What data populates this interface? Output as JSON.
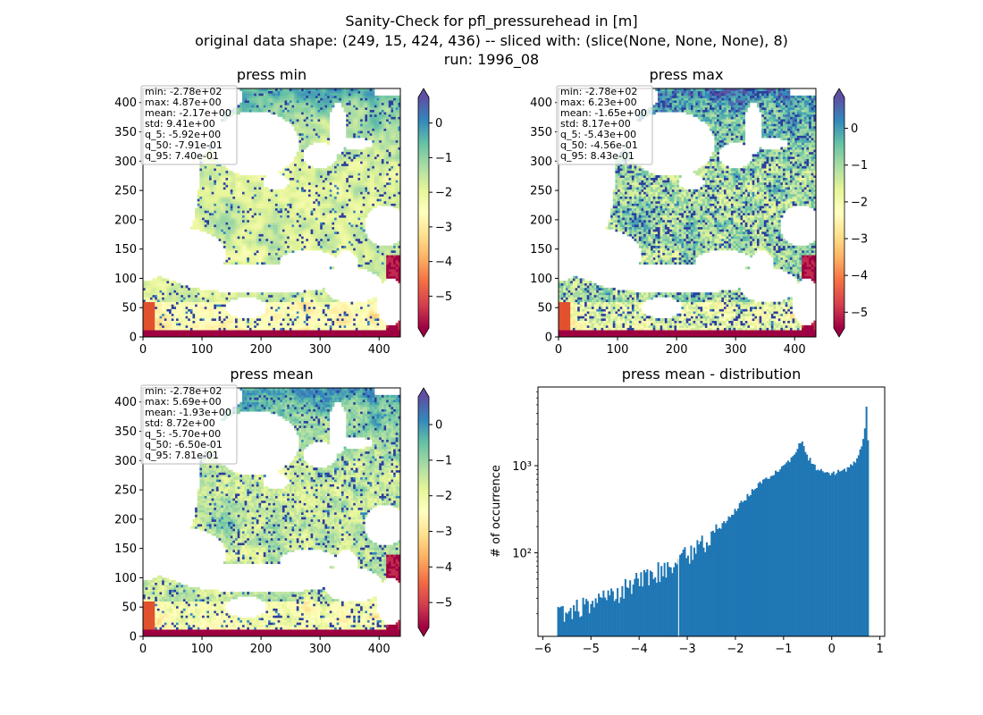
{
  "figure": {
    "title_lines": [
      "Sanity-Check for pfl_pressurehead in [m]",
      "original data shape: (249, 15, 424, 436) -- sliced with: (slice(None, None, None), 8)",
      "run: 1996_08"
    ]
  },
  "colormap": {
    "name": "Spectral",
    "stops": [
      "#9e0142",
      "#d53e4f",
      "#f46d43",
      "#fdae61",
      "#fee08b",
      "#ffffbf",
      "#e6f598",
      "#abdda4",
      "#66c2a5",
      "#3288bd",
      "#5e4fa2"
    ],
    "river_color": "#2b3f9e"
  },
  "chart_data": [
    {
      "type": "heatmap",
      "title": "press min",
      "xlim": [
        0,
        436
      ],
      "ylim": [
        0,
        424
      ],
      "xticks": [
        "0",
        "100",
        "200",
        "300",
        "400"
      ],
      "yticks": [
        "0",
        "50",
        "100",
        "150",
        "200",
        "250",
        "300",
        "350",
        "400"
      ],
      "colorbar": {
        "vmin": -5.92,
        "vmax": 0.74,
        "ticks": [
          "0",
          "−1",
          "−2",
          "−3",
          "−4",
          "−5"
        ],
        "extend": "both"
      },
      "stats": [
        "min: -2.78e+02",
        "max: 4.87e+00",
        "mean: -2.17e+00",
        "std: 9.41e+00",
        "q_5: -5.92e+00",
        "q_50: -7.91e-01",
        "q_95: 7.40e-01"
      ]
    },
    {
      "type": "heatmap",
      "title": "press max",
      "xlim": [
        0,
        436
      ],
      "ylim": [
        0,
        424
      ],
      "xticks": [
        "0",
        "100",
        "200",
        "300",
        "400"
      ],
      "yticks": [
        "0",
        "50",
        "100",
        "150",
        "200",
        "250",
        "300",
        "350",
        "400"
      ],
      "colorbar": {
        "vmin": -5.43,
        "vmax": 0.84,
        "ticks": [
          "0",
          "−1",
          "−2",
          "−3",
          "−4",
          "−5"
        ],
        "extend": "both"
      },
      "stats": [
        "min: -2.78e+02",
        "max: 6.23e+00",
        "mean: -1.65e+00",
        "std: 8.17e+00",
        "q_5: -5.43e+00",
        "q_50: -4.56e-01",
        "q_95: 8.43e-01"
      ]
    },
    {
      "type": "heatmap",
      "title": "press mean",
      "xlim": [
        0,
        436
      ],
      "ylim": [
        0,
        424
      ],
      "xticks": [
        "0",
        "100",
        "200",
        "300",
        "400"
      ],
      "yticks": [
        "0",
        "50",
        "100",
        "150",
        "200",
        "250",
        "300",
        "350",
        "400"
      ],
      "colorbar": {
        "vmin": -5.7,
        "vmax": 0.78,
        "ticks": [
          "0",
          "−1",
          "−2",
          "−3",
          "−4",
          "−5"
        ],
        "extend": "both"
      },
      "stats": [
        "min: -2.78e+02",
        "max: 5.69e+00",
        "mean: -1.93e+00",
        "std: 8.72e+00",
        "q_5: -5.70e+00",
        "q_50: -6.50e-01",
        "q_95: 7.81e-01"
      ]
    },
    {
      "type": "bar",
      "title": "press mean - distribution",
      "xlabel": "",
      "ylabel": "# of occurrence",
      "yscale": "log",
      "xlim": [
        -6.1,
        1.1
      ],
      "ylim": [
        11,
        8000
      ],
      "xticks": [
        "−6",
        "−5",
        "−4",
        "−3",
        "−2",
        "−1",
        "0",
        "1"
      ],
      "yticks": [
        "10²",
        "10³"
      ],
      "bar_color": "#1f77b4",
      "bin_width": 0.0325,
      "anchors": [
        [
          -5.7,
          28
        ],
        [
          -5.6,
          20
        ],
        [
          -5.4,
          22
        ],
        [
          -5.0,
          26
        ],
        [
          -4.6,
          33
        ],
        [
          -4.2,
          42
        ],
        [
          -3.8,
          55
        ],
        [
          -3.4,
          72
        ],
        [
          -3.0,
          95
        ],
        [
          -2.6,
          140
        ],
        [
          -2.2,
          230
        ],
        [
          -1.8,
          420
        ],
        [
          -1.5,
          620
        ],
        [
          -1.2,
          820
        ],
        [
          -0.9,
          1100
        ],
        [
          -0.75,
          1400
        ],
        [
          -0.62,
          2100
        ],
        [
          -0.52,
          1300
        ],
        [
          -0.4,
          1050
        ],
        [
          -0.3,
          900
        ],
        [
          -0.1,
          820
        ],
        [
          0.1,
          830
        ],
        [
          0.3,
          880
        ],
        [
          0.5,
          1100
        ],
        [
          0.62,
          1600
        ],
        [
          0.68,
          2500
        ],
        [
          0.72,
          5200
        ],
        [
          0.76,
          1500
        ]
      ],
      "gap_at": -3.18
    }
  ]
}
